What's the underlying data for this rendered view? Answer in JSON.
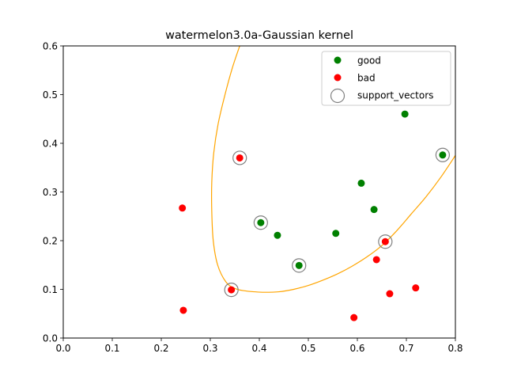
{
  "chart_data": {
    "type": "scatter",
    "title": "watermelon3.0a-Gaussian kernel",
    "xlabel": "",
    "ylabel": "",
    "xlim": [
      0.0,
      0.8
    ],
    "ylim": [
      0.0,
      0.6
    ],
    "xticks": [
      "0.0",
      "0.1",
      "0.2",
      "0.3",
      "0.4",
      "0.5",
      "0.6",
      "0.7",
      "0.8"
    ],
    "yticks": [
      "0.0",
      "0.1",
      "0.2",
      "0.3",
      "0.4",
      "0.5",
      "0.6"
    ],
    "grid": false,
    "legend_position": "top-right",
    "series": [
      {
        "name": "good",
        "color": "#008000",
        "points": [
          [
            0.697,
            0.46
          ],
          [
            0.774,
            0.376
          ],
          [
            0.634,
            0.264
          ],
          [
            0.608,
            0.318
          ],
          [
            0.556,
            0.215
          ],
          [
            0.403,
            0.237
          ],
          [
            0.481,
            0.149
          ],
          [
            0.437,
            0.211
          ]
        ]
      },
      {
        "name": "bad",
        "color": "#ff0000",
        "points": [
          [
            0.666,
            0.091
          ],
          [
            0.243,
            0.267
          ],
          [
            0.245,
            0.057
          ],
          [
            0.343,
            0.099
          ],
          [
            0.639,
            0.161
          ],
          [
            0.657,
            0.198
          ],
          [
            0.36,
            0.37
          ],
          [
            0.593,
            0.042
          ],
          [
            0.719,
            0.103
          ]
        ]
      },
      {
        "name": "support_vectors",
        "color": "#808080",
        "marker": "hollow-circle",
        "points": [
          [
            0.774,
            0.376
          ],
          [
            0.403,
            0.237
          ],
          [
            0.481,
            0.149
          ],
          [
            0.343,
            0.099
          ],
          [
            0.657,
            0.198
          ],
          [
            0.36,
            0.37
          ]
        ]
      }
    ],
    "decision_boundary": {
      "color": "#ffa500",
      "points": [
        [
          0.36,
          0.6
        ],
        [
          0.345,
          0.555
        ],
        [
          0.33,
          0.5
        ],
        [
          0.316,
          0.44
        ],
        [
          0.307,
          0.38
        ],
        [
          0.303,
          0.32
        ],
        [
          0.303,
          0.26
        ],
        [
          0.306,
          0.2
        ],
        [
          0.315,
          0.15
        ],
        [
          0.332,
          0.115
        ],
        [
          0.35,
          0.102
        ],
        [
          0.37,
          0.097
        ],
        [
          0.39,
          0.095
        ],
        [
          0.41,
          0.094
        ],
        [
          0.44,
          0.095
        ],
        [
          0.47,
          0.1
        ],
        [
          0.5,
          0.108
        ],
        [
          0.53,
          0.119
        ],
        [
          0.56,
          0.132
        ],
        [
          0.59,
          0.148
        ],
        [
          0.62,
          0.167
        ],
        [
          0.65,
          0.19
        ],
        [
          0.68,
          0.22
        ],
        [
          0.71,
          0.255
        ],
        [
          0.74,
          0.29
        ],
        [
          0.77,
          0.33
        ],
        [
          0.8,
          0.375
        ]
      ]
    }
  }
}
